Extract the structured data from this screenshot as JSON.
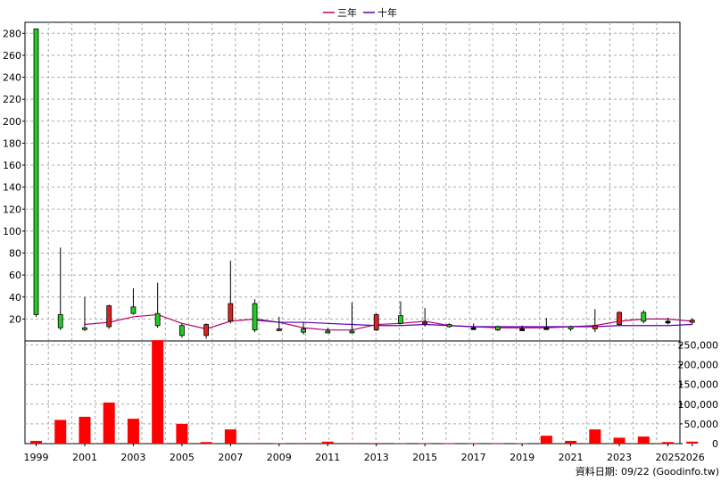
{
  "legend": {
    "items": [
      {
        "label": "三年",
        "color": "#b3006b"
      },
      {
        "label": "十年",
        "color": "#5a00b3"
      }
    ]
  },
  "footer_text": "資料日期: 09/22  (Goodinfo.tw)",
  "colors": {
    "up": "#dd2222",
    "down": "#22cc22",
    "volume": "#ff0000",
    "grid": "#aaaaaa"
  },
  "chart_data": [
    {
      "type": "candlestick",
      "title": "",
      "ylim": [
        0,
        290
      ],
      "y_ticks": [
        20,
        40,
        60,
        80,
        100,
        120,
        140,
        160,
        180,
        200,
        220,
        240,
        260,
        280
      ],
      "x_labels": [
        "1999",
        "2001",
        "2003",
        "2005",
        "2007",
        "2009",
        "2011",
        "2013",
        "2015",
        "2017",
        "2019",
        "2021",
        "2023",
        "2025",
        "2026"
      ],
      "years": [
        1999,
        2000,
        2001,
        2002,
        2003,
        2004,
        2005,
        2006,
        2007,
        2008,
        2009,
        2010,
        2011,
        2012,
        2013,
        2014,
        2015,
        2016,
        2017,
        2018,
        2019,
        2020,
        2021,
        2022,
        2023,
        2024,
        2025,
        2026
      ],
      "candles": [
        {
          "year": 1999,
          "open": 284,
          "close": 24,
          "high": 284,
          "low": 22
        },
        {
          "year": 2000,
          "open": 24,
          "close": 12,
          "high": 85,
          "low": 10
        },
        {
          "year": 2001,
          "open": 12,
          "close": 11,
          "high": 40,
          "low": 9
        },
        {
          "year": 2002,
          "open": 13,
          "close": 32,
          "high": 33,
          "low": 11
        },
        {
          "year": 2003,
          "open": 31,
          "close": 25,
          "high": 48,
          "low": 24
        },
        {
          "year": 2004,
          "open": 25,
          "close": 14,
          "high": 53,
          "low": 12
        },
        {
          "year": 2005,
          "open": 14,
          "close": 5,
          "high": 16,
          "low": 3
        },
        {
          "year": 2006,
          "open": 5,
          "close": 15,
          "high": 16,
          "low": 2
        },
        {
          "year": 2007,
          "open": 18,
          "close": 34,
          "high": 73,
          "low": 16
        },
        {
          "year": 2008,
          "open": 34,
          "close": 10,
          "high": 38,
          "low": 8
        },
        {
          "year": 2009,
          "open": 10,
          "close": 11,
          "high": 22,
          "low": 9
        },
        {
          "year": 2010,
          "open": 11,
          "close": 8,
          "high": 17,
          "low": 6
        },
        {
          "year": 2011,
          "open": 9,
          "close": 8,
          "high": 12,
          "low": 7
        },
        {
          "year": 2012,
          "open": 9,
          "close": 8,
          "high": 35,
          "low": 7
        },
        {
          "year": 2013,
          "open": 10,
          "close": 24,
          "high": 25,
          "low": 9
        },
        {
          "year": 2014,
          "open": 23,
          "close": 16,
          "high": 36,
          "low": 15
        },
        {
          "year": 2015,
          "open": 16,
          "close": 17,
          "high": 30,
          "low": 13
        },
        {
          "year": 2016,
          "open": 15,
          "close": 13,
          "high": 16,
          "low": 12
        },
        {
          "year": 2017,
          "open": 12,
          "close": 12,
          "high": 16,
          "low": 10
        },
        {
          "year": 2018,
          "open": 13,
          "close": 10,
          "high": 14,
          "low": 9
        },
        {
          "year": 2019,
          "open": 11,
          "close": 11,
          "high": 14,
          "low": 9
        },
        {
          "year": 2020,
          "open": 12,
          "close": 12,
          "high": 21,
          "low": 10
        },
        {
          "year": 2021,
          "open": 13,
          "close": 11,
          "high": 14,
          "low": 9
        },
        {
          "year": 2022,
          "open": 11,
          "close": 14,
          "high": 29,
          "low": 8
        },
        {
          "year": 2023,
          "open": 15,
          "close": 26,
          "high": 27,
          "low": 14
        },
        {
          "year": 2024,
          "open": 26,
          "close": 18,
          "high": 28,
          "low": 16
        },
        {
          "year": 2025,
          "open": 18,
          "close": 18,
          "high": 21,
          "low": 15
        },
        {
          "year": 2026,
          "open": 17,
          "close": 19,
          "high": 21,
          "low": 15
        }
      ],
      "series": [
        {
          "name": "三年",
          "x": [
            2001,
            2002,
            2003,
            2004,
            2005,
            2006,
            2007,
            2008,
            2009,
            2010,
            2011,
            2012,
            2013,
            2014,
            2015,
            2016,
            2017,
            2018,
            2019,
            2020,
            2021,
            2022,
            2023,
            2024,
            2025,
            2026
          ],
          "values": [
            15,
            17,
            22,
            24,
            16,
            11,
            18,
            20,
            17,
            12,
            10,
            10,
            15,
            16,
            18,
            14,
            13,
            12,
            12,
            12,
            13,
            14,
            18,
            20,
            20,
            18
          ]
        },
        {
          "name": "十年",
          "x": [
            2008,
            2009,
            2010,
            2011,
            2012,
            2013,
            2014,
            2015,
            2016,
            2017,
            2018,
            2019,
            2020,
            2021,
            2022,
            2023,
            2024,
            2025,
            2026
          ],
          "values": [
            19,
            17,
            17,
            16,
            15,
            14,
            14,
            15,
            14,
            13,
            13,
            13,
            13,
            13,
            13,
            14,
            14,
            14,
            15
          ]
        }
      ]
    },
    {
      "type": "bar",
      "title": "",
      "ylim": [
        0,
        260000
      ],
      "y_ticks": [
        "0",
        "50,000",
        "100,000",
        "150,000",
        "200,000",
        "250,000"
      ],
      "y_tick_values": [
        0,
        50000,
        100000,
        150000,
        200000,
        250000
      ],
      "categories": [
        1999,
        2000,
        2001,
        2002,
        2003,
        2004,
        2005,
        2006,
        2007,
        2008,
        2009,
        2010,
        2011,
        2012,
        2013,
        2014,
        2015,
        2016,
        2017,
        2018,
        2019,
        2020,
        2021,
        2022,
        2023,
        2024,
        2025,
        2026
      ],
      "values": [
        7000,
        60000,
        68000,
        104000,
        63000,
        262000,
        50000,
        4000,
        36000,
        1500,
        1000,
        1500,
        5000,
        1500,
        1500,
        1000,
        500,
        500,
        500,
        500,
        1000,
        20000,
        7000,
        36000,
        15000,
        18000,
        4000,
        5000
      ]
    }
  ]
}
